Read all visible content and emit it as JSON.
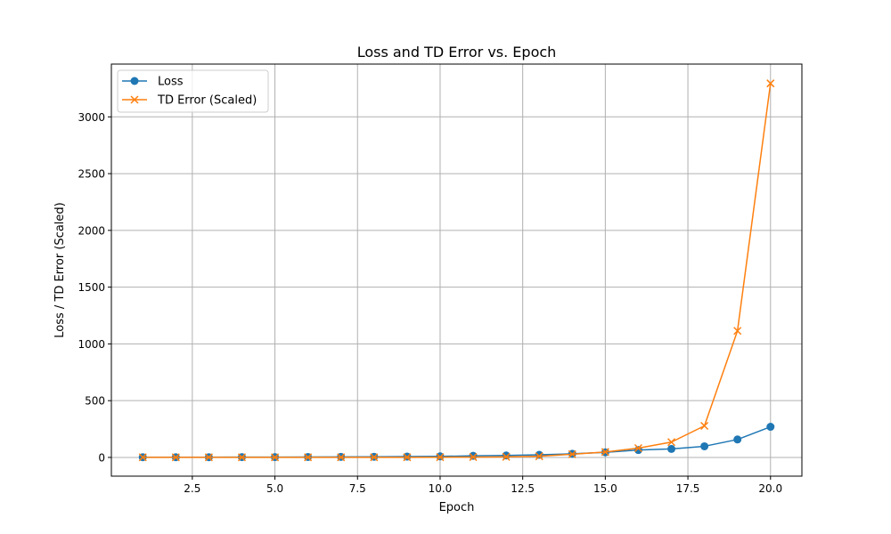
{
  "chart_data": {
    "type": "line",
    "title": "Loss and TD Error vs. Epoch",
    "xlabel": "Epoch",
    "ylabel": "Loss / TD Error (Scaled)",
    "xlim": [
      0.05,
      20.95
    ],
    "ylim": [
      -165,
      3465
    ],
    "xticks": [
      2.5,
      5.0,
      7.5,
      10.0,
      12.5,
      15.0,
      17.5,
      20.0
    ],
    "xtick_labels": [
      "2.5",
      "5.0",
      "7.5",
      "10.0",
      "12.5",
      "15.0",
      "17.5",
      "20.0"
    ],
    "yticks": [
      0,
      500,
      1000,
      1500,
      2000,
      2500,
      3000
    ],
    "ytick_labels": [
      "0",
      "500",
      "1000",
      "1500",
      "2000",
      "2500",
      "3000"
    ],
    "grid": true,
    "legend_position": "top-left",
    "x": [
      1,
      2,
      3,
      4,
      5,
      6,
      7,
      8,
      9,
      10,
      11,
      12,
      13,
      14,
      15,
      16,
      17,
      18,
      19,
      20
    ],
    "series": [
      {
        "name": "Loss",
        "marker": "circle",
        "color": "#1f77b4",
        "values": [
          2,
          2,
          2,
          3,
          3,
          4,
          5,
          6,
          7,
          9,
          14,
          17,
          23,
          32,
          45,
          65,
          75,
          98,
          158,
          270
        ]
      },
      {
        "name": "TD Error (Scaled)",
        "marker": "x",
        "color": "#ff7f0e",
        "values": [
          1,
          1,
          1,
          1,
          1,
          1,
          1,
          1,
          1,
          2,
          3,
          5,
          10,
          28,
          48,
          82,
          135,
          278,
          1115,
          3295
        ]
      }
    ]
  }
}
